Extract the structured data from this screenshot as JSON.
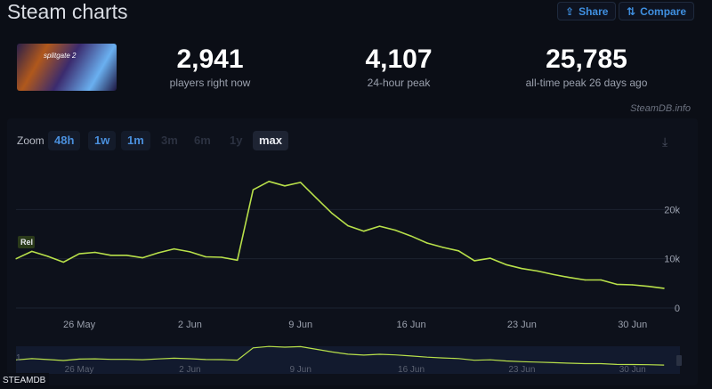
{
  "header": {
    "title": "Steam charts",
    "share_label": "Share",
    "compare_label": "Compare",
    "share_icon": "share-icon",
    "compare_icon": "compare-icon"
  },
  "game": {
    "thumbnail_text": "splitgate 2"
  },
  "stats": [
    {
      "value": "2,941",
      "label": "players right now"
    },
    {
      "value": "4,107",
      "label": "24-hour peak"
    },
    {
      "value": "25,785",
      "label": "all-time peak 26 days ago"
    }
  ],
  "credit": "SteamDB.info",
  "zoom": {
    "label": "Zoom",
    "options": [
      "48h",
      "1w",
      "1m",
      "3m",
      "6m",
      "1y",
      "max"
    ],
    "selected": "max",
    "download_icon": "download-icon"
  },
  "footer": "STEAMDB",
  "colors": {
    "line": "#b8e04a",
    "background": "#0b0e16",
    "accent": "#3f8fe0"
  },
  "chart_data": {
    "type": "line",
    "series": [
      {
        "values": [
          [
            "2025-05-22",
            10000
          ],
          [
            "2025-05-23",
            11500
          ],
          [
            "2025-05-24",
            10500
          ],
          [
            "2025-05-25",
            9300
          ],
          [
            "2025-05-26",
            11000
          ],
          [
            "2025-05-27",
            11300
          ],
          [
            "2025-05-28",
            10700
          ],
          [
            "2025-05-29",
            10700
          ],
          [
            "2025-05-30",
            10200
          ],
          [
            "2025-05-31",
            11200
          ],
          [
            "2025-06-01",
            12000
          ],
          [
            "2025-06-02",
            11400
          ],
          [
            "2025-06-03",
            10400
          ],
          [
            "2025-06-04",
            10300
          ],
          [
            "2025-06-05",
            9700
          ],
          [
            "2025-06-06",
            24000
          ],
          [
            "2025-06-07",
            25700
          ],
          [
            "2025-06-08",
            24800
          ],
          [
            "2025-06-09",
            25500
          ],
          [
            "2025-06-10",
            22300
          ],
          [
            "2025-06-11",
            19200
          ],
          [
            "2025-06-12",
            16700
          ],
          [
            "2025-06-13",
            15600
          ],
          [
            "2025-06-14",
            16600
          ],
          [
            "2025-06-15",
            15800
          ],
          [
            "2025-06-16",
            14600
          ],
          [
            "2025-06-17",
            13200
          ],
          [
            "2025-06-18",
            12300
          ],
          [
            "2025-06-19",
            11600
          ],
          [
            "2025-06-20",
            9600
          ],
          [
            "2025-06-21",
            10100
          ],
          [
            "2025-06-22",
            8800
          ],
          [
            "2025-06-23",
            8000
          ],
          [
            "2025-06-24",
            7500
          ],
          [
            "2025-06-25",
            6800
          ],
          [
            "2025-06-26",
            6200
          ],
          [
            "2025-06-27",
            5700
          ],
          [
            "2025-06-28",
            5700
          ],
          [
            "2025-06-29",
            4800
          ],
          [
            "2025-06-30",
            4700
          ],
          [
            "2025-07-01",
            4400
          ],
          [
            "2025-07-02",
            4000
          ]
        ]
      }
    ],
    "annotations": [
      {
        "date": "2025-05-22",
        "text": "Rel"
      }
    ],
    "x_ticks": [
      {
        "date": "2025-05-26",
        "label": "26 May"
      },
      {
        "date": "2025-06-02",
        "label": "2 Jun"
      },
      {
        "date": "2025-06-09",
        "label": "9 Jun"
      },
      {
        "date": "2025-06-16",
        "label": "16 Jun"
      },
      {
        "date": "2025-06-23",
        "label": "23 Jun"
      },
      {
        "date": "2025-06-30",
        "label": "30 Jun"
      }
    ],
    "y_ticks": [
      {
        "value": 0,
        "label": "0"
      },
      {
        "value": 10000,
        "label": "10k"
      },
      {
        "value": 20000,
        "label": "20k"
      }
    ],
    "xlim": [
      "2025-05-22",
      "2025-07-03"
    ],
    "ylim": [
      0,
      30000
    ],
    "grid": true,
    "navigator": {
      "enabled": true,
      "label": "1"
    }
  }
}
